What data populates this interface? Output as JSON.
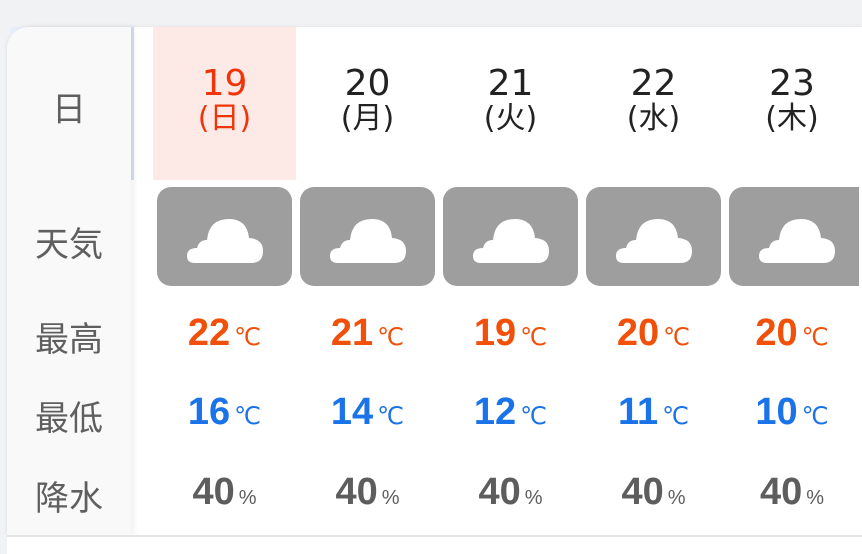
{
  "labels": {
    "date": "日",
    "weather": "天気",
    "high": "最高",
    "low": "最低",
    "precip": "降水"
  },
  "units": {
    "temp": "℃",
    "precip": "%"
  },
  "colors": {
    "sunday": "#f0340a",
    "high": "#f0500a",
    "low": "#1a73e8",
    "precip": "#5d5d5d",
    "cloudy_bg": "#9e9e9e",
    "rain_bg": "#1a73e8"
  },
  "previous_day": {
    "weather_icon": "rain-icon"
  },
  "days": [
    {
      "day": "19",
      "weekday": "(日)",
      "weather_icon": "cloud-icon",
      "high": "22",
      "low": "16",
      "precip": "40",
      "sunday": true
    },
    {
      "day": "20",
      "weekday": "(月)",
      "weather_icon": "cloud-icon",
      "high": "21",
      "low": "14",
      "precip": "40"
    },
    {
      "day": "21",
      "weekday": "(火)",
      "weather_icon": "cloud-icon",
      "high": "19",
      "low": "12",
      "precip": "40"
    },
    {
      "day": "22",
      "weekday": "(水)",
      "weather_icon": "cloud-icon",
      "high": "20",
      "low": "11",
      "precip": "40"
    },
    {
      "day": "23",
      "weekday": "(木)",
      "weather_icon": "cloud-icon",
      "high": "20",
      "low": "10",
      "precip": "40"
    }
  ]
}
